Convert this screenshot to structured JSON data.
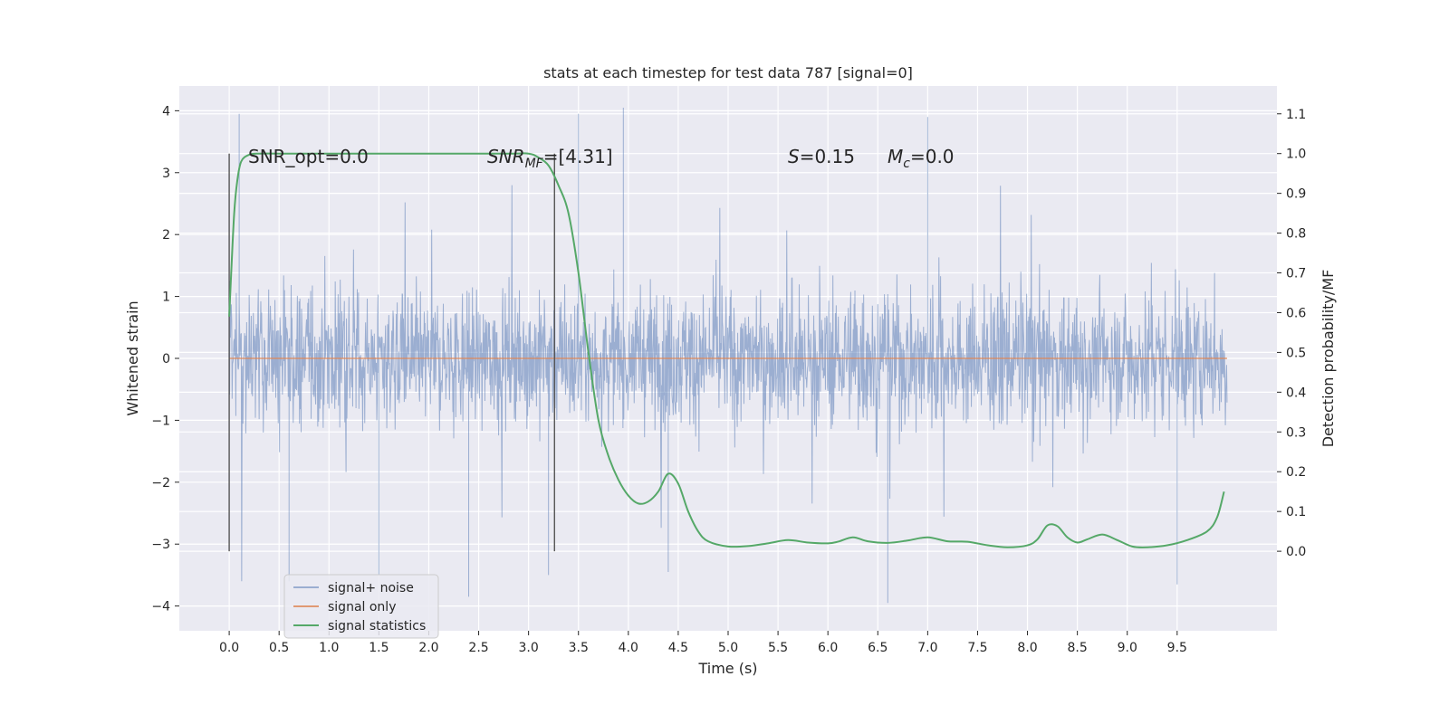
{
  "chart_data": {
    "type": "line",
    "title": "stats at each timestep for test data 787 [signal=0]",
    "xlabel": "Time (s)",
    "ylabel": "Whitened strain",
    "ylabel_right": "Detection probability/MF",
    "xlim": [
      -0.5,
      10.5
    ],
    "ylim": [
      -4.4,
      4.4
    ],
    "ylim_right": [
      -0.2,
      1.17
    ],
    "x_ticks": [
      "0.0",
      "0.5",
      "1.0",
      "1.5",
      "2.0",
      "2.5",
      "3.0",
      "3.5",
      "4.0",
      "4.5",
      "5.0",
      "5.5",
      "6.0",
      "6.5",
      "7.0",
      "7.5",
      "8.0",
      "8.5",
      "9.0",
      "9.5"
    ],
    "y_ticks": [
      "4",
      "3",
      "2",
      "1",
      "0",
      "−1",
      "−2",
      "−3",
      "−4"
    ],
    "y_ticks_right": [
      "1.1",
      "1.0",
      "0.9",
      "0.8",
      "0.7",
      "0.6",
      "0.5",
      "0.4",
      "0.3",
      "0.2",
      "0.1",
      "0.0"
    ],
    "grid": true,
    "legend_position": "lower-left",
    "colors": {
      "background": "#eaeaf2",
      "grid": "#ffffff",
      "noise": "#4c72b0",
      "signal_only": "#dd8452",
      "statistics": "#55a868",
      "marker_lines": "#555555"
    },
    "annotations": {
      "snr_opt": "SNR_opt=0.0",
      "snr_mf_base": "SNR",
      "snr_mf_sub": "MF",
      "snr_mf_value": "=[4.31]",
      "s_sym": "S",
      "s_value": "=0.15",
      "mc_base": "M",
      "mc_sub": "c",
      "mc_value": "=0.0"
    },
    "vertical_markers_x": [
      0.0,
      3.26
    ],
    "series": [
      {
        "name": "signal+ noise",
        "kind": "noise-trace",
        "x_range": [
          0.0,
          10.0
        ],
        "typical_range": [
          -1.2,
          1.3
        ],
        "peak_envelope": [
          -4.0,
          4.05
        ],
        "spikes": [
          {
            "x": 0.1,
            "y": 3.95
          },
          {
            "x": 3.5,
            "y": 3.95
          },
          {
            "x": 3.95,
            "y": 4.05
          },
          {
            "x": 7.0,
            "y": 3.9
          },
          {
            "x": 2.4,
            "y": -3.85
          },
          {
            "x": 6.6,
            "y": -3.95
          },
          {
            "x": 1.5,
            "y": -3.5
          },
          {
            "x": 3.2,
            "y": -3.5
          },
          {
            "x": 9.5,
            "y": -3.65
          },
          {
            "x": 0.6,
            "y": -3.6
          },
          {
            "x": 4.4,
            "y": -3.45
          }
        ]
      },
      {
        "name": "signal only",
        "kind": "line",
        "x": [
          0.0,
          10.0
        ],
        "y": [
          0.0,
          0.0
        ]
      },
      {
        "name": "signal statistics",
        "kind": "line",
        "axis": "right",
        "x": [
          0.0,
          0.02,
          0.05,
          0.08,
          0.12,
          0.2,
          0.3,
          0.5,
          1.0,
          2.0,
          2.8,
          3.0,
          3.1,
          3.2,
          3.3,
          3.4,
          3.5,
          3.6,
          3.7,
          3.8,
          3.9,
          4.0,
          4.1,
          4.2,
          4.3,
          4.4,
          4.5,
          4.6,
          4.7,
          4.8,
          5.0,
          5.2,
          5.4,
          5.6,
          5.8,
          6.0,
          6.1,
          6.25,
          6.4,
          6.6,
          6.8,
          7.0,
          7.2,
          7.4,
          7.6,
          7.8,
          8.0,
          8.1,
          8.2,
          8.3,
          8.4,
          8.5,
          8.6,
          8.75,
          8.9,
          9.05,
          9.2,
          9.4,
          9.6,
          9.8,
          9.9,
          9.97
        ],
        "y": [
          0.59,
          0.7,
          0.85,
          0.93,
          0.98,
          0.997,
          1.0,
          1.0,
          1.0,
          1.0,
          1.0,
          1.0,
          0.99,
          0.97,
          0.92,
          0.85,
          0.7,
          0.5,
          0.33,
          0.24,
          0.18,
          0.14,
          0.12,
          0.125,
          0.15,
          0.195,
          0.17,
          0.1,
          0.05,
          0.025,
          0.012,
          0.013,
          0.02,
          0.028,
          0.022,
          0.02,
          0.024,
          0.035,
          0.025,
          0.021,
          0.027,
          0.035,
          0.025,
          0.024,
          0.015,
          0.01,
          0.015,
          0.03,
          0.065,
          0.063,
          0.035,
          0.022,
          0.03,
          0.042,
          0.028,
          0.012,
          0.01,
          0.015,
          0.028,
          0.05,
          0.085,
          0.15
        ]
      }
    ]
  }
}
